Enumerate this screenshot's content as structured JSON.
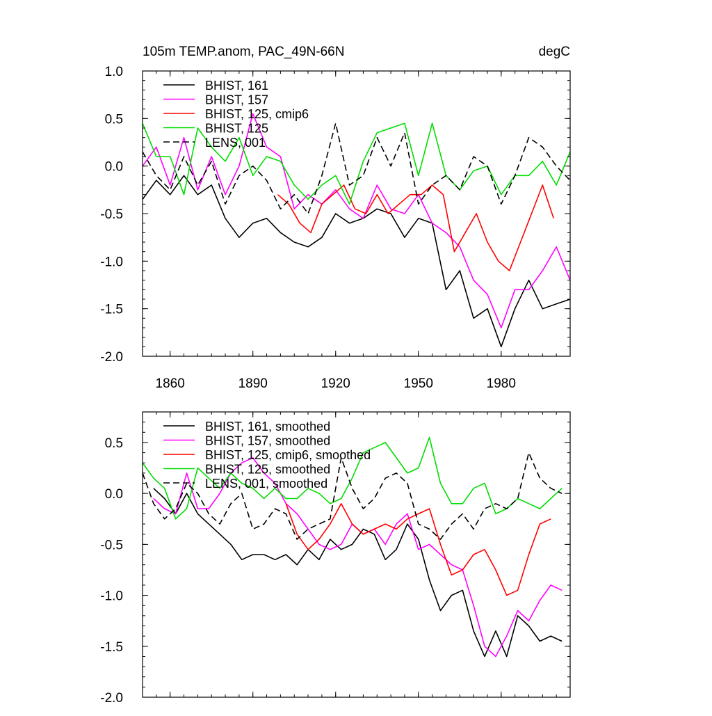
{
  "chart_data": [
    {
      "type": "line",
      "title": "105m TEMP.anom, PAC_49N-66N",
      "units": "degC",
      "xlabel": "",
      "ylabel": "",
      "xlim": [
        1850,
        2005
      ],
      "ylim": [
        -2.0,
        1.0
      ],
      "yticks": [
        1.0,
        0.5,
        0.0,
        -0.5,
        -1.0,
        -1.5,
        -2.0
      ],
      "ytick_labels": [
        "1.0",
        "0.5",
        "0.0",
        "-0.5",
        "-1.0",
        "-1.5",
        "-2.0"
      ],
      "xticks": [
        1860,
        1890,
        1920,
        1950,
        1980
      ],
      "xtick_labels": [
        "1860",
        "1890",
        "1920",
        "1950",
        "1980"
      ],
      "legend_position": "top-left",
      "series": [
        {
          "name": "BHIST, 161",
          "color": "#000000",
          "dash": false,
          "x": [
            1850,
            1855,
            1860,
            1865,
            1870,
            1875,
            1880,
            1885,
            1890,
            1895,
            1900,
            1905,
            1910,
            1915,
            1920,
            1925,
            1930,
            1935,
            1940,
            1945,
            1950,
            1955,
            1960,
            1965,
            1970,
            1975,
            1980,
            1985,
            1990,
            1995,
            2000,
            2005
          ],
          "y": [
            -0.35,
            -0.15,
            -0.3,
            -0.1,
            -0.3,
            -0.2,
            -0.55,
            -0.75,
            -0.6,
            -0.55,
            -0.7,
            -0.8,
            -0.85,
            -0.75,
            -0.5,
            -0.6,
            -0.55,
            -0.45,
            -0.5,
            -0.75,
            -0.55,
            -0.6,
            -1.3,
            -1.1,
            -1.6,
            -1.5,
            -1.9,
            -1.5,
            -1.2,
            -1.5,
            -1.45,
            -1.4
          ]
        },
        {
          "name": "BHIST, 157",
          "color": "#ff00ff",
          "dash": false,
          "x": [
            1850,
            1855,
            1860,
            1865,
            1870,
            1875,
            1880,
            1885,
            1890,
            1895,
            1900,
            1905,
            1910,
            1915,
            1920,
            1925,
            1930,
            1935,
            1940,
            1945,
            1950,
            1955,
            1960,
            1965,
            1970,
            1975,
            1980,
            1985,
            1990,
            1995,
            2000,
            2005
          ],
          "y": [
            0.0,
            0.2,
            -0.2,
            0.3,
            -0.25,
            0.1,
            -0.3,
            0.0,
            0.55,
            0.2,
            0.1,
            -0.45,
            -0.3,
            -0.4,
            -0.25,
            -0.45,
            -0.55,
            -0.2,
            -0.45,
            -0.5,
            -0.3,
            -0.6,
            -0.7,
            -0.85,
            -1.2,
            -1.35,
            -1.7,
            -1.3,
            -1.3,
            -1.1,
            -0.85,
            -1.2
          ]
        },
        {
          "name": "BHIST, 125, cmip6",
          "color": "#ff0000",
          "dash": false,
          "x": [
            1899,
            1903,
            1907,
            1911,
            1915,
            1919,
            1923,
            1927,
            1931,
            1935,
            1939,
            1943,
            1947,
            1951,
            1955,
            1959,
            1963,
            1967,
            1971,
            1975,
            1979,
            1983,
            1987,
            1991,
            1995,
            1999
          ],
          "y": [
            -0.3,
            -0.4,
            -0.6,
            -0.7,
            -0.4,
            -0.3,
            -0.2,
            -0.45,
            -0.5,
            -0.3,
            -0.5,
            -0.4,
            -0.3,
            -0.3,
            -0.2,
            -0.3,
            -0.9,
            -0.7,
            -0.5,
            -0.8,
            -1.0,
            -1.1,
            -0.8,
            -0.5,
            -0.2,
            -0.55
          ]
        },
        {
          "name": "BHIST, 125",
          "color": "#00dd00",
          "dash": false,
          "x": [
            1850,
            1855,
            1860,
            1865,
            1870,
            1875,
            1880,
            1885,
            1890,
            1895,
            1900,
            1905,
            1910,
            1915,
            1920,
            1925,
            1930,
            1935,
            1940,
            1945,
            1950,
            1955,
            1960,
            1965,
            1970,
            1975,
            1980,
            1985,
            1990,
            1995,
            2000,
            2005
          ],
          "y": [
            0.45,
            0.1,
            0.1,
            -0.3,
            0.4,
            0.2,
            0.05,
            0.3,
            -0.1,
            0.1,
            0.05,
            -0.2,
            -0.35,
            -0.2,
            -0.1,
            -0.4,
            0.05,
            0.35,
            0.4,
            0.45,
            -0.1,
            0.45,
            -0.1,
            -0.25,
            -0.05,
            0.0,
            -0.3,
            -0.1,
            -0.1,
            0.05,
            -0.2,
            0.15
          ]
        },
        {
          "name": "LENS, 001",
          "color": "#000000",
          "dash": true,
          "x": [
            1850,
            1855,
            1860,
            1865,
            1870,
            1875,
            1880,
            1885,
            1890,
            1895,
            1900,
            1905,
            1910,
            1915,
            1920,
            1925,
            1930,
            1935,
            1940,
            1945,
            1950,
            1955,
            1960,
            1965,
            1970,
            1975,
            1980,
            1985,
            1990,
            1995,
            2000,
            2005
          ],
          "y": [
            0.15,
            -0.1,
            -0.25,
            0.1,
            -0.2,
            0.05,
            -0.4,
            -0.1,
            0.0,
            -0.15,
            -0.45,
            -0.3,
            -0.5,
            -0.1,
            0.45,
            -0.2,
            -0.1,
            0.3,
            0.0,
            0.35,
            -0.4,
            -0.2,
            -0.1,
            -0.25,
            0.1,
            0.0,
            -0.4,
            -0.1,
            0.3,
            0.2,
            0.0,
            -0.15
          ]
        }
      ]
    },
    {
      "type": "line",
      "title": "",
      "xlabel": "",
      "ylabel": "",
      "xlim": [
        1850,
        2005
      ],
      "ylim": [
        -2.0,
        0.8
      ],
      "yticks": [
        0.5,
        0.0,
        -0.5,
        -1.0,
        -1.5,
        -2.0
      ],
      "ytick_labels": [
        "0.5",
        "0.0",
        "-0.5",
        "-1.0",
        "-1.5",
        "-2.0"
      ],
      "xticks": [
        1860,
        1890,
        1920,
        1950,
        1980
      ],
      "legend_position": "top-left",
      "series": [
        {
          "name": "BHIST, 161, smoothed",
          "color": "#000000",
          "dash": false,
          "x": [
            1854,
            1858,
            1862,
            1866,
            1870,
            1874,
            1878,
            1882,
            1886,
            1890,
            1894,
            1898,
            1902,
            1906,
            1910,
            1914,
            1918,
            1922,
            1926,
            1930,
            1934,
            1938,
            1942,
            1946,
            1950,
            1954,
            1958,
            1962,
            1966,
            1970,
            1974,
            1978,
            1982,
            1986,
            1990,
            1994,
            1998,
            2002
          ],
          "y": [
            0.05,
            -0.05,
            -0.2,
            0.0,
            -0.2,
            -0.3,
            -0.4,
            -0.5,
            -0.65,
            -0.6,
            -0.6,
            -0.65,
            -0.6,
            -0.7,
            -0.55,
            -0.65,
            -0.45,
            -0.55,
            -0.5,
            -0.35,
            -0.4,
            -0.65,
            -0.55,
            -0.3,
            -0.45,
            -0.85,
            -1.15,
            -1.0,
            -0.95,
            -1.35,
            -1.6,
            -1.35,
            -1.6,
            -1.2,
            -1.3,
            -1.45,
            -1.4,
            -1.45
          ]
        },
        {
          "name": "BHIST, 157, smoothed",
          "color": "#ff00ff",
          "dash": false,
          "x": [
            1854,
            1858,
            1862,
            1866,
            1870,
            1874,
            1878,
            1882,
            1886,
            1890,
            1894,
            1898,
            1902,
            1906,
            1910,
            1914,
            1918,
            1922,
            1926,
            1930,
            1934,
            1938,
            1942,
            1946,
            1950,
            1954,
            1958,
            1962,
            1966,
            1970,
            1974,
            1978,
            1982,
            1986,
            1990,
            1994,
            1998,
            2002
          ],
          "y": [
            -0.05,
            -0.15,
            -0.2,
            0.2,
            -0.15,
            -0.15,
            0.0,
            0.2,
            0.3,
            0.35,
            0.2,
            0.1,
            -0.1,
            -0.2,
            -0.35,
            -0.5,
            -0.55,
            -0.5,
            -0.3,
            -0.4,
            -0.35,
            -0.5,
            -0.3,
            -0.2,
            -0.55,
            -0.5,
            -0.6,
            -0.7,
            -0.75,
            -1.1,
            -1.5,
            -1.6,
            -1.4,
            -1.15,
            -1.25,
            -1.05,
            -0.9,
            -0.95
          ]
        },
        {
          "name": "BHIST, 125, cmip6, smoothed",
          "color": "#ff0000",
          "dash": false,
          "x": [
            1902,
            1906,
            1910,
            1914,
            1918,
            1922,
            1926,
            1930,
            1934,
            1938,
            1942,
            1946,
            1950,
            1954,
            1958,
            1962,
            1966,
            1970,
            1974,
            1978,
            1982,
            1986,
            1990,
            1994,
            1998
          ],
          "y": [
            -0.1,
            -0.4,
            -0.55,
            -0.45,
            -0.3,
            -0.1,
            -0.3,
            -0.4,
            -0.35,
            -0.3,
            -0.35,
            -0.25,
            -0.2,
            -0.15,
            -0.5,
            -0.8,
            -0.75,
            -0.6,
            -0.55,
            -0.75,
            -1.0,
            -0.95,
            -0.6,
            -0.3,
            -0.25
          ]
        },
        {
          "name": "BHIST, 125, smoothed",
          "color": "#00dd00",
          "dash": false,
          "x": [
            1850,
            1854,
            1858,
            1862,
            1866,
            1870,
            1874,
            1878,
            1882,
            1886,
            1890,
            1894,
            1898,
            1902,
            1906,
            1910,
            1914,
            1918,
            1922,
            1926,
            1930,
            1934,
            1938,
            1942,
            1946,
            1950,
            1954,
            1958,
            1962,
            1966,
            1970,
            1974,
            1978,
            1982,
            1986,
            1990,
            1994,
            1998,
            2002
          ],
          "y": [
            0.3,
            0.15,
            0.05,
            -0.25,
            -0.15,
            0.25,
            0.15,
            0.05,
            0.2,
            0.1,
            0.05,
            -0.05,
            0.05,
            -0.05,
            -0.05,
            0.05,
            0.0,
            -0.1,
            -0.05,
            0.15,
            0.4,
            0.45,
            0.5,
            0.35,
            0.2,
            0.25,
            0.55,
            0.1,
            -0.1,
            -0.1,
            0.05,
            0.1,
            -0.2,
            -0.15,
            -0.05,
            -0.1,
            -0.15,
            -0.05,
            0.05
          ]
        },
        {
          "name": "LENS, 001, smoothed",
          "color": "#000000",
          "dash": true,
          "x": [
            1850,
            1854,
            1858,
            1862,
            1866,
            1870,
            1874,
            1878,
            1882,
            1886,
            1890,
            1894,
            1898,
            1902,
            1906,
            1910,
            1914,
            1918,
            1922,
            1926,
            1930,
            1934,
            1938,
            1942,
            1946,
            1950,
            1954,
            1958,
            1962,
            1966,
            1970,
            1974,
            1978,
            1982,
            1986,
            1990,
            1994,
            1998,
            2002
          ],
          "y": [
            0.2,
            -0.1,
            -0.25,
            -0.15,
            0.1,
            0.0,
            -0.2,
            -0.3,
            -0.1,
            0.0,
            -0.35,
            -0.3,
            -0.15,
            -0.2,
            -0.45,
            -0.35,
            -0.3,
            -0.25,
            0.35,
            0.05,
            -0.15,
            -0.05,
            0.15,
            0.2,
            0.1,
            -0.3,
            -0.35,
            -0.45,
            -0.3,
            -0.2,
            -0.35,
            -0.15,
            -0.1,
            -0.15,
            -0.05,
            0.4,
            0.15,
            0.05,
            0.0
          ]
        }
      ]
    }
  ]
}
